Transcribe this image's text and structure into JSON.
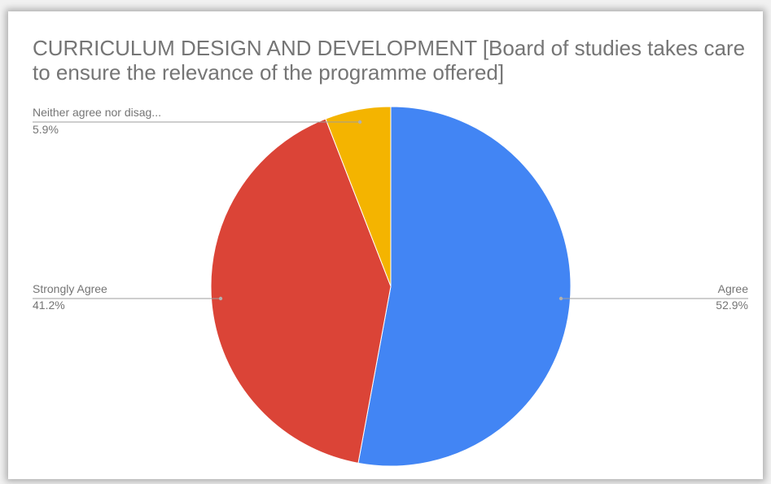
{
  "chart_data": {
    "type": "pie",
    "title": "CURRICULUM DESIGN AND DEVELOPMENT  [Board of studies takes care to ensure the relevance of the programme offered]",
    "slices": [
      {
        "label": "Agree",
        "value": 52.9,
        "value_label": "52.9%",
        "color": "#4285f4"
      },
      {
        "label": "Strongly Agree",
        "value": 41.2,
        "value_label": "41.2%",
        "color": "#db4437"
      },
      {
        "label": "Neither agree nor disag...",
        "value": 5.9,
        "value_label": "5.9%",
        "color": "#f4b400"
      }
    ],
    "start_angle": "12 o'clock",
    "direction": "clockwise",
    "legend": "labels beside slices"
  }
}
